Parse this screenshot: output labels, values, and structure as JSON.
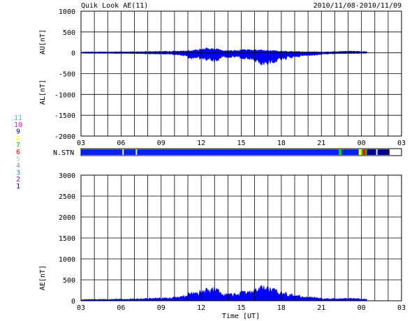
{
  "header": {
    "title": "Quik Look AE(11)",
    "date_range": "2010/11/08-2010/11/09"
  },
  "legend": {
    "station_numbers": [
      {
        "label": "11",
        "color": "#00e0e0"
      },
      {
        "label": "10",
        "color": "#ff00ff"
      },
      {
        "label": "9",
        "color": "#0000cc"
      },
      {
        "label": "8",
        "color": "#ffff00"
      },
      {
        "label": "7",
        "color": "#00cc00"
      },
      {
        "label": "6",
        "color": "#ff0000"
      },
      {
        "label": "5",
        "color": "#c0c0c0"
      },
      {
        "label": "4",
        "color": "#909090"
      },
      {
        "label": "3",
        "color": "#00a0a0"
      },
      {
        "label": "2",
        "color": "#aa00aa"
      },
      {
        "label": "1",
        "color": "#0000aa"
      }
    ]
  },
  "chart_data": [
    {
      "type": "area",
      "panel": "AU/AL",
      "ylabel_upper": "AU[nT]",
      "ylabel_lower": "AL[nT]",
      "ylim": [
        -2000,
        1000
      ],
      "yticks": [
        1000,
        500,
        0,
        -500,
        -1000,
        -1500,
        -2000
      ],
      "xlim_hours": [
        3,
        27
      ],
      "xticks": [
        "03",
        "06",
        "09",
        "12",
        "15",
        "18",
        "21",
        "00",
        "03"
      ],
      "grid": true,
      "fill_color": "#0000ff",
      "series": [
        {
          "name": "AU",
          "x_hours": [
            3,
            5,
            7,
            8.5,
            9.5,
            10.5,
            11,
            11.5,
            12,
            12.5,
            13,
            13.5,
            14,
            14.5,
            15,
            15.5,
            16,
            16.5,
            17,
            17.5,
            18,
            18.5,
            19,
            19.5,
            20,
            20.5,
            21,
            21.5,
            22,
            22.5,
            23,
            23.5,
            24,
            24.4
          ],
          "values": [
            20,
            25,
            30,
            35,
            40,
            45,
            55,
            70,
            90,
            120,
            100,
            80,
            50,
            60,
            70,
            80,
            75,
            70,
            60,
            50,
            45,
            40,
            35,
            30,
            25,
            25,
            20,
            25,
            30,
            40,
            45,
            40,
            35,
            30
          ]
        },
        {
          "name": "AL",
          "x_hours": [
            3,
            5,
            7,
            8.5,
            9.5,
            10.5,
            11,
            11.2,
            11.5,
            12,
            12.5,
            13,
            13.5,
            14,
            14.5,
            15,
            15.5,
            16,
            16.5,
            16.8,
            17,
            17.5,
            18,
            18.5,
            19,
            19.5,
            20,
            20.5,
            21,
            21.5,
            22,
            22.5,
            23,
            23.5,
            24,
            24.4
          ],
          "values": [
            -10,
            -15,
            -20,
            -30,
            -35,
            -60,
            -100,
            -200,
            -120,
            -150,
            -180,
            -220,
            -140,
            -120,
            -100,
            -130,
            -150,
            -200,
            -280,
            -320,
            -270,
            -220,
            -180,
            -150,
            -110,
            -90,
            -70,
            -60,
            -40,
            -30,
            -25,
            -20,
            -20,
            -15,
            -15,
            -10
          ]
        }
      ]
    },
    {
      "type": "bar",
      "panel": "N.STN",
      "label": "N.STN",
      "xlim_hours": [
        3,
        27
      ],
      "segments": [
        {
          "start": 3.0,
          "end": 6.1,
          "station_count": 9
        },
        {
          "start": 6.2,
          "end": 7.1,
          "station_count": 9
        },
        {
          "start": 7.2,
          "end": 22.3,
          "station_count": 9
        },
        {
          "start": 22.3,
          "end": 22.5,
          "station_count": 7
        },
        {
          "start": 22.5,
          "end": 23.8,
          "station_count": 9
        },
        {
          "start": 23.8,
          "end": 24.0,
          "station_count": 8
        },
        {
          "start": 24.0,
          "end": 24.1,
          "station_count": 7
        },
        {
          "start": 24.1,
          "end": 24.3,
          "station_count": 6
        },
        {
          "start": 24.3,
          "end": 24.4,
          "station_count": 7
        },
        {
          "start": 24.4,
          "end": 25.1,
          "station_count": 1
        },
        {
          "start": 25.2,
          "end": 26.1,
          "station_count": 1
        }
      ]
    },
    {
      "type": "area",
      "panel": "AE",
      "ylabel": "AE[nT]",
      "xlabel": "Time [UT]",
      "ylim": [
        0,
        3000
      ],
      "yticks": [
        3000,
        2500,
        2000,
        1500,
        1000,
        500,
        0
      ],
      "xlim_hours": [
        3,
        27
      ],
      "xticks": [
        "03",
        "06",
        "09",
        "12",
        "15",
        "18",
        "21",
        "00",
        "03"
      ],
      "grid": true,
      "fill_color": "#0000ff",
      "series": [
        {
          "name": "AE",
          "x_hours": [
            3,
            5,
            7,
            8.5,
            9.5,
            10.5,
            11,
            11.2,
            11.5,
            12,
            12.5,
            13,
            13.5,
            14,
            14.5,
            15,
            15.5,
            16,
            16.5,
            16.8,
            17,
            17.5,
            18,
            18.5,
            19,
            19.5,
            20,
            20.5,
            21,
            21.5,
            22,
            22.5,
            23,
            23.5,
            24,
            24.4
          ],
          "values": [
            30,
            40,
            50,
            65,
            75,
            105,
            155,
            260,
            190,
            240,
            300,
            320,
            220,
            170,
            170,
            210,
            225,
            275,
            350,
            380,
            330,
            270,
            225,
            190,
            145,
            120,
            95,
            85,
            60,
            55,
            55,
            60,
            65,
            55,
            50,
            40
          ]
        }
      ]
    }
  ]
}
